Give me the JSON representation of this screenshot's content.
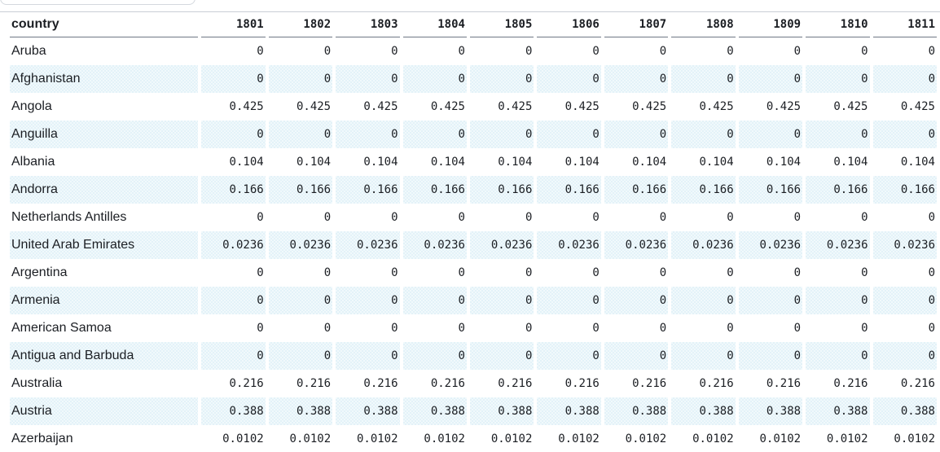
{
  "table": {
    "country_header": "country",
    "years": [
      "1801",
      "1802",
      "1803",
      "1804",
      "1805",
      "1806",
      "1807",
      "1808",
      "1809",
      "1810",
      "1811"
    ],
    "rows": [
      {
        "country": "Aruba",
        "values": [
          "0",
          "0",
          "0",
          "0",
          "0",
          "0",
          "0",
          "0",
          "0",
          "0",
          "0"
        ]
      },
      {
        "country": "Afghanistan",
        "values": [
          "0",
          "0",
          "0",
          "0",
          "0",
          "0",
          "0",
          "0",
          "0",
          "0",
          "0"
        ]
      },
      {
        "country": "Angola",
        "values": [
          "0.425",
          "0.425",
          "0.425",
          "0.425",
          "0.425",
          "0.425",
          "0.425",
          "0.425",
          "0.425",
          "0.425",
          "0.425"
        ]
      },
      {
        "country": "Anguilla",
        "values": [
          "0",
          "0",
          "0",
          "0",
          "0",
          "0",
          "0",
          "0",
          "0",
          "0",
          "0"
        ]
      },
      {
        "country": "Albania",
        "values": [
          "0.104",
          "0.104",
          "0.104",
          "0.104",
          "0.104",
          "0.104",
          "0.104",
          "0.104",
          "0.104",
          "0.104",
          "0.104"
        ]
      },
      {
        "country": "Andorra",
        "values": [
          "0.166",
          "0.166",
          "0.166",
          "0.166",
          "0.166",
          "0.166",
          "0.166",
          "0.166",
          "0.166",
          "0.166",
          "0.166"
        ]
      },
      {
        "country": "Netherlands Antilles",
        "values": [
          "0",
          "0",
          "0",
          "0",
          "0",
          "0",
          "0",
          "0",
          "0",
          "0",
          "0"
        ]
      },
      {
        "country": "United Arab Emirates",
        "values": [
          "0.0236",
          "0.0236",
          "0.0236",
          "0.0236",
          "0.0236",
          "0.0236",
          "0.0236",
          "0.0236",
          "0.0236",
          "0.0236",
          "0.0236"
        ]
      },
      {
        "country": "Argentina",
        "values": [
          "0",
          "0",
          "0",
          "0",
          "0",
          "0",
          "0",
          "0",
          "0",
          "0",
          "0"
        ]
      },
      {
        "country": "Armenia",
        "values": [
          "0",
          "0",
          "0",
          "0",
          "0",
          "0",
          "0",
          "0",
          "0",
          "0",
          "0"
        ]
      },
      {
        "country": "American Samoa",
        "values": [
          "0",
          "0",
          "0",
          "0",
          "0",
          "0",
          "0",
          "0",
          "0",
          "0",
          "0"
        ]
      },
      {
        "country": "Antigua and Barbuda",
        "values": [
          "0",
          "0",
          "0",
          "0",
          "0",
          "0",
          "0",
          "0",
          "0",
          "0",
          "0"
        ]
      },
      {
        "country": "Australia",
        "values": [
          "0.216",
          "0.216",
          "0.216",
          "0.216",
          "0.216",
          "0.216",
          "0.216",
          "0.216",
          "0.216",
          "0.216",
          "0.216"
        ]
      },
      {
        "country": "Austria",
        "values": [
          "0.388",
          "0.388",
          "0.388",
          "0.388",
          "0.388",
          "0.388",
          "0.388",
          "0.388",
          "0.388",
          "0.388",
          "0.388"
        ]
      },
      {
        "country": "Azerbaijan",
        "values": [
          "0.0102",
          "0.0102",
          "0.0102",
          "0.0102",
          "0.0102",
          "0.0102",
          "0.0102",
          "0.0102",
          "0.0102",
          "0.0102",
          "0.0102"
        ]
      }
    ]
  }
}
